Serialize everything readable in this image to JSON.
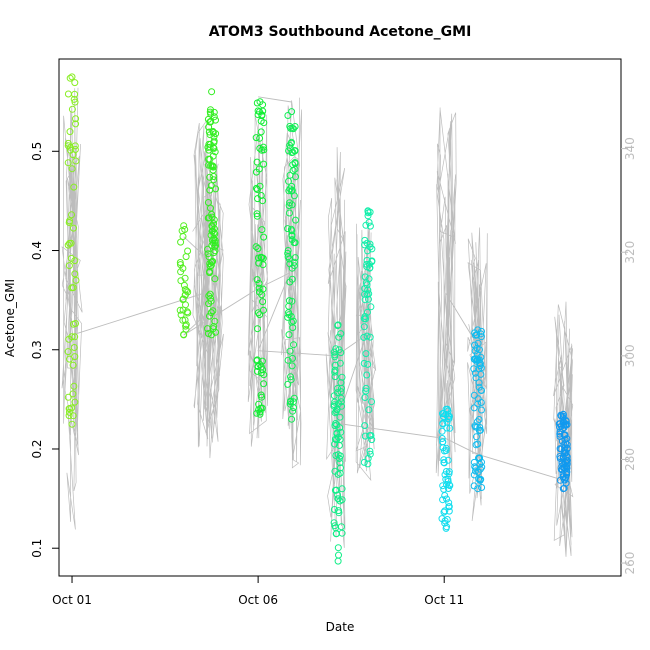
{
  "chart_data": {
    "type": "scatter",
    "title": "ATOM3 Southbound Acetone_GMI",
    "xlabel": "Date",
    "ylabel": "Acetone_GMI",
    "y2label": "",
    "x_ticks": [
      "Oct 01",
      "Oct 06",
      "Oct 11"
    ],
    "x_tick_days": [
      1,
      6,
      11
    ],
    "xlim": [
      0.65,
      15.75
    ],
    "ylim": [
      0.072,
      0.593
    ],
    "y_ticks": [
      0.1,
      0.2,
      0.3,
      0.4,
      0.5
    ],
    "y_tick_labels": [
      "0.1",
      "0.2",
      "0.3",
      "0.4",
      "0.5"
    ],
    "y2lim": [
      257.5,
      357.3
    ],
    "y2_ticks": [
      260,
      280,
      300,
      320,
      340
    ],
    "y2_tick_labels": [
      "260",
      "280",
      "300",
      "320",
      "340"
    ],
    "grid": false,
    "points_series": {
      "name": "",
      "marker": "open-circle",
      "colormap": "green-to-blue by date",
      "clusters": [
        {
          "day": 1.0,
          "ymin": 0.225,
          "ymax": 0.575,
          "n": 55,
          "color": "#88ee22"
        },
        {
          "day": 4.0,
          "ymin": 0.315,
          "ymax": 0.425,
          "n": 32,
          "color": "#55ee22"
        },
        {
          "day": 4.75,
          "ymin": 0.315,
          "ymax": 0.56,
          "n": 95,
          "color": "#33ee22"
        },
        {
          "day": 6.05,
          "ymin": 0.235,
          "ymax": 0.55,
          "n": 70,
          "color": "#11ee33"
        },
        {
          "day": 6.9,
          "ymin": 0.23,
          "ymax": 0.54,
          "n": 80,
          "color": "#11ee55"
        },
        {
          "day": 8.15,
          "ymin": 0.087,
          "ymax": 0.325,
          "n": 75,
          "color": "#11ee88"
        },
        {
          "day": 8.95,
          "ymin": 0.185,
          "ymax": 0.44,
          "n": 60,
          "color": "#11eeaa"
        },
        {
          "day": 11.05,
          "ymin": 0.12,
          "ymax": 0.24,
          "n": 55,
          "color": "#11ddee"
        },
        {
          "day": 11.9,
          "ymin": 0.16,
          "ymax": 0.32,
          "n": 70,
          "color": "#11bbee"
        },
        {
          "day": 14.2,
          "ymin": 0.16,
          "ymax": 0.235,
          "n": 75,
          "color": "#1199ee"
        }
      ]
    },
    "line_series": {
      "name": "",
      "color": "#bdbdbd",
      "axis": "right",
      "spikes": [
        {
          "day": 1.0,
          "lo": 266,
          "hi": 352
        },
        {
          "day": 4.5,
          "lo": 282,
          "hi": 346
        },
        {
          "day": 4.8,
          "lo": 280,
          "hi": 340
        },
        {
          "day": 6.0,
          "lo": 282,
          "hi": 349
        },
        {
          "day": 6.9,
          "lo": 278,
          "hi": 350
        },
        {
          "day": 8.1,
          "lo": 262,
          "hi": 343
        },
        {
          "day": 8.9,
          "lo": 276,
          "hi": 330
        },
        {
          "day": 11.05,
          "lo": 274,
          "hi": 350
        },
        {
          "day": 11.9,
          "lo": 268,
          "hi": 327
        },
        {
          "day": 14.2,
          "lo": 261,
          "hi": 312
        }
      ],
      "connectors": [
        {
          "x": 1.0,
          "y": 304
        },
        {
          "x": 4.5,
          "y": 312
        },
        {
          "x": 4.75,
          "y": 309
        },
        {
          "x": 4.0,
          "y": 304
        },
        {
          "x": 6.0,
          "y": 313
        },
        {
          "x": 6.85,
          "y": 316
        },
        {
          "x": 6.0,
          "y": 301
        },
        {
          "x": 8.1,
          "y": 300
        },
        {
          "x": 8.9,
          "y": 304
        },
        {
          "x": 8.1,
          "y": 287
        },
        {
          "x": 11.05,
          "y": 284
        },
        {
          "x": 11.9,
          "y": 281
        },
        {
          "x": 14.2,
          "y": 276
        }
      ],
      "extra_connectors": [
        {
          "x": 4.0,
          "y": 323
        },
        {
          "x": 4.75,
          "y": 318
        },
        {
          "x": 6.0,
          "y": 350
        },
        {
          "x": 6.9,
          "y": 349
        },
        {
          "x": 11.05,
          "y": 312
        },
        {
          "x": 11.9,
          "y": 302
        }
      ]
    }
  }
}
